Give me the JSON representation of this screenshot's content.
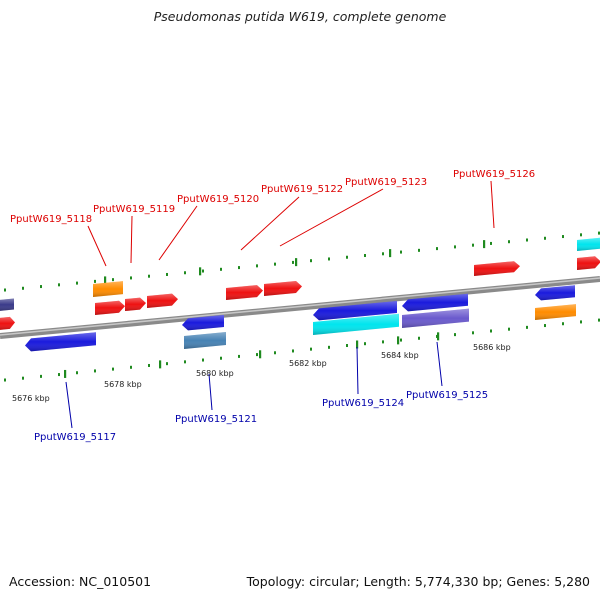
{
  "title": "Pseudomonas putida W619, complete genome",
  "footer": {
    "accession": "Accession: NC_010501",
    "summary": "Topology: circular; Length: 5,774,330 bp; Genes: 5,280"
  },
  "colors": {
    "backbone": "#8a8a8a",
    "tick": "#1f8a1f",
    "label_forward": "#dd0000",
    "label_reverse": "#0000aa",
    "red": "#ee1111",
    "blue": "#1a1add",
    "orange": "#ff8c00",
    "cyan": "#00e5ee",
    "steel": "#4682b4",
    "purple": "#6a5acd",
    "indigo": "#3a3a8a"
  },
  "ticks": [
    "5676 kbp",
    "5678 kbp",
    "5680 kbp",
    "5682 kbp",
    "5684 kbp",
    "5686 kbp"
  ],
  "forward_labels": [
    "PputW619_5118",
    "PputW619_5119",
    "PputW619_5120",
    "PputW619_5122",
    "PputW619_5123",
    "PputW619_5126"
  ],
  "reverse_labels": [
    "PputW619_5117",
    "PputW619_5121",
    "PputW619_5124",
    "PputW619_5125"
  ]
}
